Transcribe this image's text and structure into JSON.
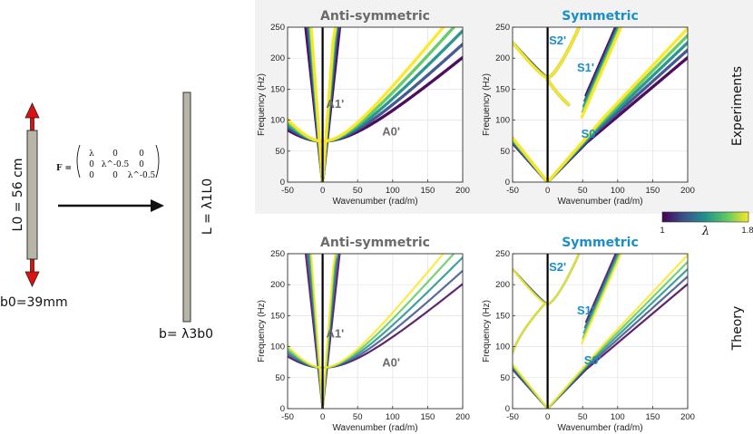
{
  "strip": {
    "original_length_label": "L0 = 56 cm",
    "original_width_label": "b0=39mm",
    "deformed_length_label": "L = λ1L0",
    "deformed_width_label": "b= λ3b0"
  },
  "deformation": {
    "symbol": "F =",
    "matrix": [
      [
        "λ",
        "0",
        "0"
      ],
      [
        "0",
        "λ^-0.5",
        "0"
      ],
      [
        "0",
        "0",
        "λ^-0.5"
      ]
    ]
  },
  "rows": [
    {
      "row_label": "Experiments"
    },
    {
      "row_label": "Theory"
    }
  ],
  "colorbar": {
    "symbol": "λ",
    "min": "1",
    "max": "1.8",
    "colors": [
      "#440154",
      "#3b528b",
      "#21918c",
      "#5ec962",
      "#fde725"
    ]
  },
  "colors": {
    "anti_title": "#6b6b6b",
    "sym_title": "#1b8fc4",
    "exp_bg": "#f2f2f2"
  },
  "chart_data": [
    {
      "type": "scatter",
      "panel": "exp_anti",
      "title": "Anti-symmetric",
      "xlabel": "Wavenumber (rad/m)",
      "ylabel": "Frequency (Hz)",
      "xlim": [
        -50,
        200
      ],
      "ylim": [
        0,
        250
      ],
      "xticks": [
        -50,
        0,
        50,
        100,
        150,
        200
      ],
      "yticks": [
        0,
        50,
        100,
        150,
        200,
        250
      ],
      "annotations": [
        {
          "text": "A1'",
          "x": 5,
          "y": 120
        },
        {
          "text": "A0'",
          "x": 85,
          "y": 75
        }
      ]
    },
    {
      "type": "scatter",
      "panel": "exp_sym",
      "title": "Symmetric",
      "xlabel": "Wavenumber (rad/m)",
      "ylabel": "Frequency (Hz)",
      "xlim": [
        -50,
        200
      ],
      "ylim": [
        0,
        250
      ],
      "xticks": [
        -50,
        0,
        50,
        100,
        150,
        200
      ],
      "yticks": [
        0,
        50,
        100,
        150,
        200,
        250
      ],
      "annotations": [
        {
          "text": "S2'",
          "x": 2,
          "y": 222
        },
        {
          "text": "S1'",
          "x": 42,
          "y": 178
        },
        {
          "text": "S0'",
          "x": 48,
          "y": 72
        }
      ]
    },
    {
      "type": "scatter",
      "panel": "th_anti",
      "title": "Anti-symmetric",
      "xlabel": "Wavenumber (rad/m)",
      "ylabel": "Frequency (Hz)",
      "xlim": [
        -50,
        200
      ],
      "ylim": [
        0,
        250
      ],
      "xticks": [
        -50,
        0,
        50,
        100,
        150,
        200
      ],
      "yticks": [
        0,
        50,
        100,
        150,
        200,
        250
      ],
      "annotations": [
        {
          "text": "A1'",
          "x": 5,
          "y": 115
        },
        {
          "text": "A0'",
          "x": 85,
          "y": 68
        }
      ]
    },
    {
      "type": "scatter",
      "panel": "th_sym",
      "title": "Symmetric",
      "xlabel": "Wavenumber (rad/m)",
      "ylabel": "Frequency (Hz)",
      "xlim": [
        -50,
        200
      ],
      "ylim": [
        0,
        250
      ],
      "xticks": [
        -50,
        0,
        50,
        100,
        150,
        200
      ],
      "yticks": [
        0,
        50,
        100,
        150,
        200,
        250
      ],
      "annotations": [
        {
          "text": "S2'",
          "x": 2,
          "y": 222
        },
        {
          "text": "S1'",
          "x": 42,
          "y": 152
        },
        {
          "text": "S0'",
          "x": 52,
          "y": 72
        }
      ]
    }
  ]
}
